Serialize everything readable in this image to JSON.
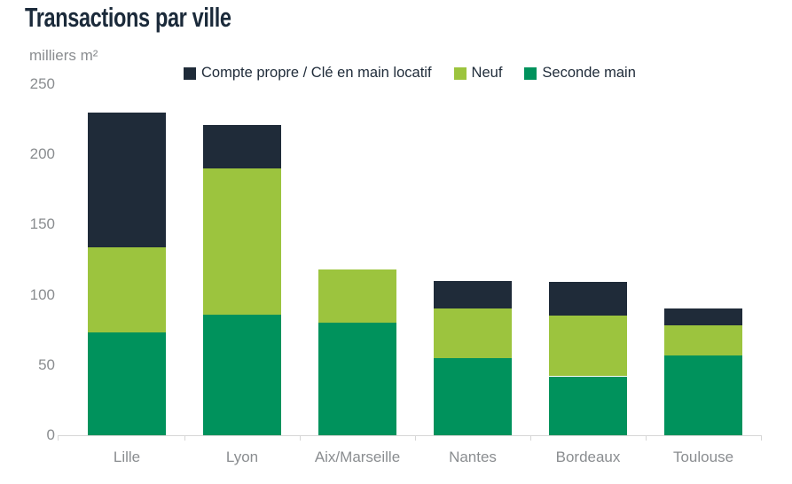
{
  "chart_data": {
    "type": "bar",
    "stacked": true,
    "title": "Transactions par ville",
    "ylabel": "milliers m²",
    "xlabel": "",
    "ylim": [
      0,
      250
    ],
    "yticks": [
      250,
      200,
      150,
      100,
      50,
      0
    ],
    "grid": false,
    "legend_position": "top",
    "legend_order": [
      "Compte propre / Clé en main locatif",
      "Neuf",
      "Seconde main"
    ],
    "categories": [
      "Lille",
      "Lyon",
      "Aix/Marseille",
      "Nantes",
      "Bordeaux",
      "Toulouse"
    ],
    "series": [
      {
        "name": "Seconde main",
        "color": "#00925c",
        "values": [
          73,
          86,
          80,
          55,
          42,
          57
        ]
      },
      {
        "name": "Neuf",
        "color": "#9cc43e",
        "values": [
          61,
          104,
          38,
          35,
          43,
          21
        ]
      },
      {
        "name": "Compte propre / Clé en main locatif",
        "color": "#1f2b39",
        "values": [
          96,
          31,
          0,
          20,
          24,
          12
        ]
      }
    ]
  },
  "colors": {
    "title_text": "#1b2a3a",
    "legend_text": "#1f2b39",
    "axis_text": "#8a8d90",
    "axis_line": "#d6d6d6",
    "background": "#ffffff"
  }
}
